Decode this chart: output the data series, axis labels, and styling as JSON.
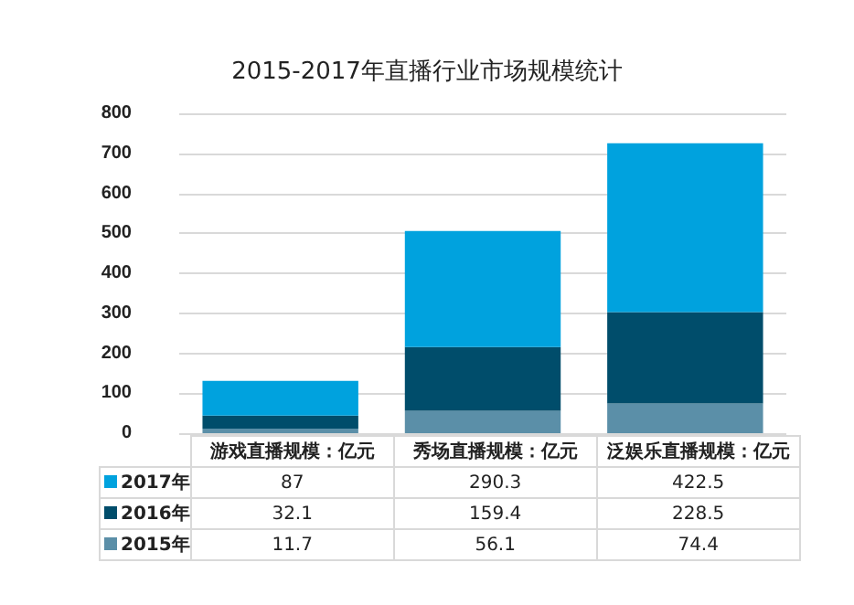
{
  "chart_data": {
    "type": "bar",
    "title": "2015-2017年直播行业市场规模统计",
    "categories": [
      "游戏直播规模：亿元",
      "秀场直播规模：亿元",
      "泛娱乐直播规模：亿元"
    ],
    "series": [
      {
        "name": "2015年",
        "color": "#5b8fa8",
        "values": [
          11.7,
          56.1,
          74.4
        ]
      },
      {
        "name": "2016年",
        "color": "#004d6b",
        "values": [
          32.1,
          159.4,
          228.5
        ]
      },
      {
        "name": "2017年",
        "color": "#00a2de",
        "values": [
          87,
          290.3,
          422.5
        ]
      }
    ],
    "stacked": true,
    "ylim": [
      0,
      800
    ],
    "yticks": [
      0,
      100,
      200,
      300,
      400,
      500,
      600,
      700,
      800
    ],
    "grid": "y",
    "legend": "bottom",
    "data_labels": true
  }
}
